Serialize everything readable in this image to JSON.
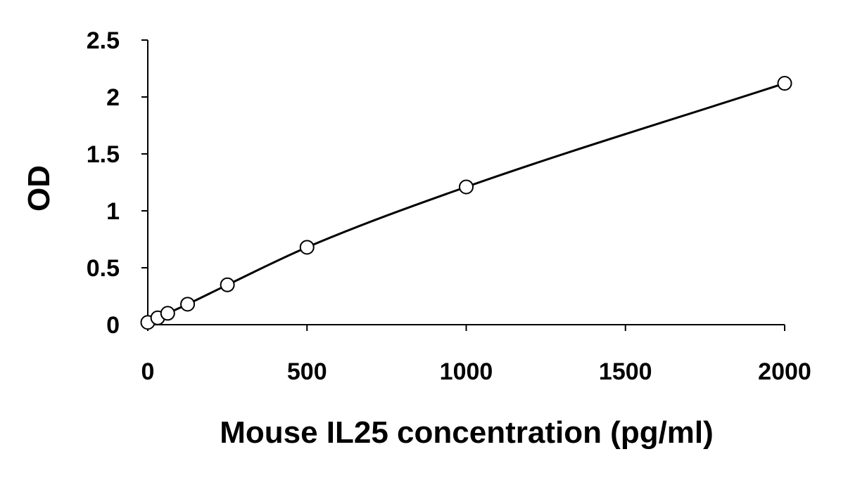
{
  "chart_data": {
    "type": "scatter",
    "title": "",
    "xlabel": "Mouse IL25 concentration (pg/ml)",
    "ylabel": "OD",
    "xlim": [
      0,
      2000
    ],
    "ylim": [
      0,
      2.5
    ],
    "xticks": [
      0,
      500,
      1000,
      1500,
      2000
    ],
    "yticks": [
      0,
      0.5,
      1,
      1.5,
      2,
      2.5
    ],
    "xtick_labels": [
      "0",
      "500",
      "1000",
      "1500",
      "2000"
    ],
    "ytick_labels": [
      "0",
      "0.5",
      "1",
      "1.5",
      "2",
      "2.5"
    ],
    "grid": false,
    "legend": "none",
    "colors": {
      "axis": "#000000",
      "marker_stroke": "#000000",
      "marker_fill": "#ffffff",
      "curve": "#000000"
    },
    "series": [
      {
        "marker": "open-circle",
        "fit_line": "smooth",
        "points": [
          {
            "x": 0,
            "y": 0.02
          },
          {
            "x": 31.25,
            "y": 0.06
          },
          {
            "x": 62.5,
            "y": 0.1
          },
          {
            "x": 125,
            "y": 0.18
          },
          {
            "x": 250,
            "y": 0.35
          },
          {
            "x": 500,
            "y": 0.68
          },
          {
            "x": 1000,
            "y": 1.21
          },
          {
            "x": 2000,
            "y": 2.12
          }
        ]
      }
    ]
  }
}
